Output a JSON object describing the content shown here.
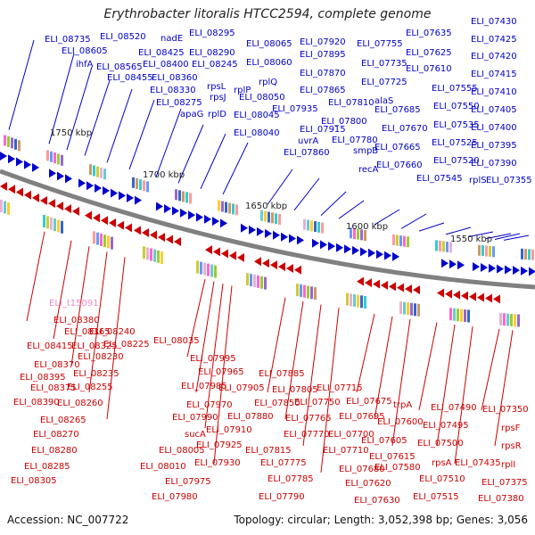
{
  "title": "Erythrobacter litoralis HTCC2594, complete genome",
  "footer": {
    "accession": "Accession: NC_007722",
    "summary": "Topology: circular; Length: 3,052,398 bp; Genes: 3,056"
  },
  "colors": {
    "plus": "#0000cc",
    "minus": "#cc0000",
    "rna": "#ee88cc",
    "backbone": "#808080"
  },
  "ticks": [
    "1750 kbp",
    "1700 kbp",
    "1650 kbp",
    "1600 kbp",
    "1550 kbp"
  ],
  "plus_labels": [
    "ELI_08735",
    "ELI_08520",
    "ELI_08605",
    "ihfA",
    "ELI_08565",
    "ELI_08455",
    "nadE",
    "ELI_08425",
    "ELI_08400",
    "ELI_08360",
    "ELI_08330",
    "ELI_08275",
    "ELI_08295",
    "ELI_08290",
    "ELI_08245",
    "rpsL",
    "rpsJ",
    "apaG",
    "rplP",
    "rplD",
    "rplQ",
    "ELI_08065",
    "ELI_08060",
    "ELI_08050",
    "ELI_08045",
    "ELI_08040",
    "ELI_07920",
    "ELI_07895",
    "ELI_07870",
    "ELI_07865",
    "ELI_07810",
    "ELI_07800",
    "ELI_07935",
    "ELI_07915",
    "uvrA",
    "ELI_07860",
    "ELI_07780",
    "smpB",
    "recA",
    "ELI_07755",
    "ELI_07735",
    "ELI_07725",
    "alaS",
    "ELI_07685",
    "ELI_07670",
    "ELI_07665",
    "ELI_07660",
    "ELI_07635",
    "ELI_07625",
    "ELI_07610",
    "ELI_07555",
    "ELI_07550",
    "ELI_07535",
    "ELI_07525",
    "ELI_07520",
    "ELI_07545",
    "ELI_07430",
    "ELI_07425",
    "ELI_07420",
    "ELI_07415",
    "ELI_07410",
    "ELI_07405",
    "ELI_07400",
    "ELI_07395",
    "ELI_07390",
    "rplS",
    "ELI_07355"
  ],
  "rna_labels": [
    "ELI_t15091"
  ],
  "minus_labels": [
    "ELI_08380",
    "ELI_08365",
    "ELI_08415",
    "ELI_08325",
    "ELI_08370",
    "ELI_08395",
    "ELI_08375",
    "ELI_08390",
    "ELI_08265",
    "ELI_08270",
    "ELI_08280",
    "ELI_08285",
    "ELI_08305",
    "ELI_08240",
    "ELI_08225",
    "ELI_08230",
    "ELI_08235",
    "ELI_08255",
    "ELI_08260",
    "ELI_08035",
    "ELI_07995",
    "ELI_07965",
    "ELI_07985",
    "ELI_07970",
    "ELI_07990",
    "sucA",
    "ELI_08005",
    "ELI_08010",
    "ELI_07975",
    "ELI_07980",
    "ELI_07930",
    "ELI_07925",
    "ELI_07910",
    "ELI_07905",
    "ELI_07880",
    "ELI_07885",
    "ELI_07850",
    "ELI_07805",
    "ELI_07765",
    "ELI_07750",
    "ELI_07770",
    "ELI_07815",
    "ELI_07775",
    "ELI_07785",
    "ELI_07790",
    "ELI_07715",
    "ELI_07675",
    "ELI_07695",
    "ELI_07700",
    "ELI_07710",
    "ELI_07680",
    "ELI_07620",
    "ELI_07630",
    "trpA",
    "ELI_07600",
    "ELI_07605",
    "ELI_07615",
    "ELI_07580",
    "ELI_07490",
    "ELI_07495",
    "ELI_07500",
    "rpsA",
    "ELI_07510",
    "ELI_07515",
    "ELI_07435",
    "ELI_07350",
    "rpsF",
    "rpsR",
    "rplI",
    "ELI_07375",
    "ELI_07380"
  ]
}
